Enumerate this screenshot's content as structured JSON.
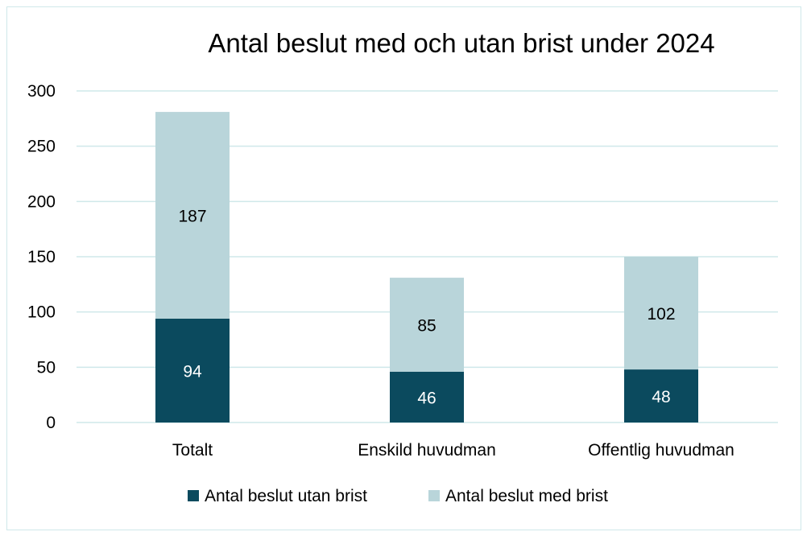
{
  "chart_data": {
    "type": "bar",
    "stacked": true,
    "title": "Antal beslut med och utan brist under 2024",
    "xlabel": "",
    "ylabel": "",
    "categories": [
      "Totalt",
      "Enskild huvudman",
      "Offentlig huvudman"
    ],
    "series": [
      {
        "name": "Antal beslut utan brist",
        "values": [
          94,
          46,
          48
        ],
        "color": "#0b4a5e",
        "label_color": "#ffffff"
      },
      {
        "name": "Antal beslut med brist",
        "values": [
          187,
          85,
          102
        ],
        "color": "#b9d5da",
        "label_color": "#000000"
      }
    ],
    "ylim": [
      0,
      300
    ],
    "yticks": [
      0,
      50,
      100,
      150,
      200,
      250,
      300
    ],
    "grid": true,
    "legend_position": "bottom",
    "gridline_color": "#cfe8ea"
  }
}
